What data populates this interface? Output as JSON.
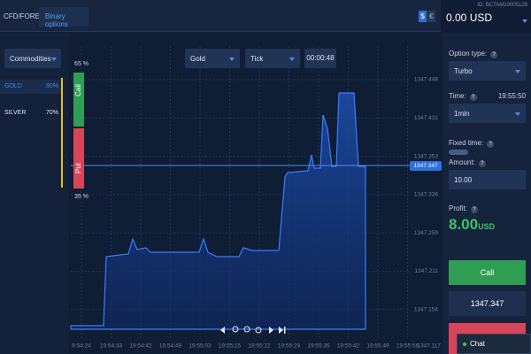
{
  "header": {
    "tabs": [
      "CFD/FOREX",
      "Binary options"
    ],
    "currencies": [
      "$",
      "€"
    ],
    "account_id": "ID: BCTAM10005129",
    "balance": "0.00 USD"
  },
  "assets": {
    "category": "Commodities",
    "items": [
      {
        "name": "GOLD",
        "payout": "80%"
      },
      {
        "name": "SILVER",
        "payout": "70%"
      }
    ]
  },
  "chart": {
    "asset": "Gold",
    "mode": "Tick",
    "timer": "00:00:48",
    "call_share": "65 %",
    "call_label": "Call",
    "put_label": "Put",
    "put_share": "35 %",
    "price_labels": [
      "1347.448",
      "1347.431",
      "1347.353",
      "1347.336",
      "1347.259",
      "1347.211",
      "1347.154",
      "1347.117"
    ],
    "current_price": "1347.347",
    "time_labels": [
      "9:54:24",
      "19:54:33",
      "19:54:42",
      "19:54:49",
      "19:55:03",
      "19:55:15",
      "19:55:22",
      "19:55:29",
      "19:55:35",
      "19:55:42",
      "19:55:49",
      "19:55:56"
    ]
  },
  "trade": {
    "option_type_label": "Option type:",
    "option_type": "Turbo",
    "time_label": "Time:",
    "time": "19:55:50",
    "duration": "1min",
    "fixed_time_label": "Fixed time:",
    "amount_label": "Amount:",
    "amount": "10.00",
    "profit_label": "Profit:",
    "profit": "8.00",
    "profit_currency": "USD",
    "help": "?",
    "call_button": "Call",
    "current_price": "1347.347"
  },
  "chat": "Chat"
}
